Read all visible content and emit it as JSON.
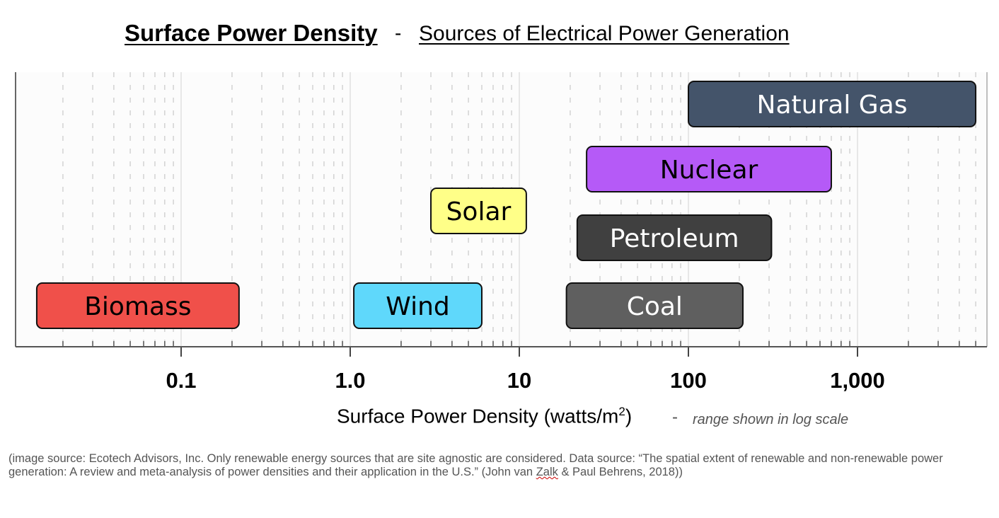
{
  "title": {
    "main": "Surface Power Density",
    "dash": "-",
    "sub": "Sources of Electrical Power Generation"
  },
  "chart_data": {
    "type": "bar",
    "orientation": "horizontal-range",
    "x_scale": "log",
    "xlim": [
      0.013,
      6000
    ],
    "xlabel": "Surface Power Density  (watts/m2)",
    "xlabel_note": "range shown in log scale",
    "tick_labels": [
      "0.1",
      "1.0",
      "10",
      "100",
      "1,000"
    ],
    "tick_values": [
      0.1,
      1,
      10,
      100,
      1000
    ],
    "grid": true,
    "series": [
      {
        "name": "Natural Gas",
        "min": 100,
        "max": 5000,
        "row": 0,
        "color": "#44546a",
        "text_color": "#ffffff"
      },
      {
        "name": "Nuclear",
        "min": 25,
        "max": 700,
        "row": 1,
        "color": "#b55af7",
        "text_color": "#000000"
      },
      {
        "name": "Solar",
        "min": 3,
        "max": 11,
        "row": 2,
        "color": "#ffff88",
        "text_color": "#000000"
      },
      {
        "name": "Petroleum",
        "min": 22,
        "max": 310,
        "row": 3,
        "color": "#404040",
        "text_color": "#ffffff"
      },
      {
        "name": "Biomass",
        "min": 0.014,
        "max": 0.22,
        "row": 4,
        "color": "#f0504a",
        "text_color": "#000000"
      },
      {
        "name": "Wind",
        "min": 1.05,
        "max": 6,
        "row": 4,
        "color": "#5fd8fb",
        "text_color": "#000000"
      },
      {
        "name": "Coal",
        "min": 19,
        "max": 210,
        "row": 4,
        "color": "#5f5f5f",
        "text_color": "#ffffff"
      }
    ]
  },
  "axis": {
    "title_main": "Surface Power Density  (watts/m",
    "title_sup": "2",
    "title_close": ")",
    "dash": "-",
    "note": "range shown in log scale"
  },
  "source_note": {
    "before": "(image source:  Ecotech Advisors, Inc. Only renewable energy sources that are site agnostic are considered.  Data source:  “The spatial extent of renewable and non-renewable power generation: A review and meta-analysis of power densities and their application in the U.S.” (John van ",
    "zalk": "Zalk",
    "after": " & Paul Behrens, 2018))"
  }
}
